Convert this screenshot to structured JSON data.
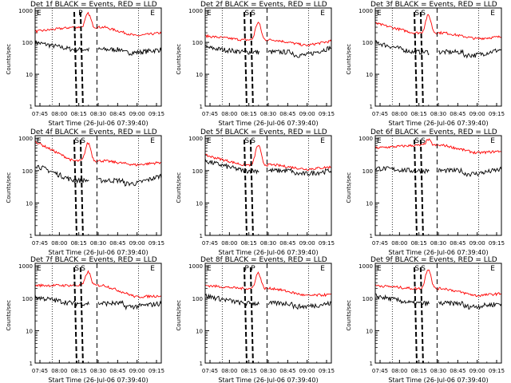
{
  "style": {
    "events_color": "#000000",
    "lld_color": "#ff0000",
    "background": "#ffffff"
  },
  "chart_data": [
    {
      "type": "line",
      "title": "Det 1f BLACK = Events, RED = LLD",
      "ylabel": "Counts/sec",
      "xlabel": "Start Time (26-Jul-06 07:39:40)",
      "x_ticks": [
        "07:45",
        "08:00",
        "08:15",
        "08:30",
        "08:45",
        "09:00",
        "09:15"
      ],
      "y_ticks": [
        "1",
        "10",
        "100",
        "1000"
      ],
      "y_scale": "log",
      "ylim": [
        1,
        1200
      ],
      "marker_labels": [
        "E",
        "P",
        "E"
      ],
      "series": [
        {
          "name": "Events",
          "color": "#000000"
        },
        {
          "name": "LLD",
          "color": "#ff0000"
        }
      ],
      "lld": {
        "start": 220,
        "pre": 300,
        "peak": 800,
        "valley": 160,
        "end": 200
      },
      "events": {
        "start": 100,
        "pre": 60,
        "end": 60
      },
      "shading": [
        [
          0.35,
          0.45
        ],
        [
          0.45,
          0.55
        ]
      ]
    },
    {
      "type": "line",
      "title": "Det 2f BLACK = Events, RED = LLD",
      "ylabel": "Counts/sec",
      "xlabel": "Start Time (26-Jul-06 07:39:40)",
      "x_ticks": [
        "07:45",
        "08:00",
        "08:15",
        "08:30",
        "08:45",
        "09:00",
        "09:15"
      ],
      "y_ticks": [
        "1",
        "10",
        "100",
        "1000"
      ],
      "y_scale": "log",
      "ylim": [
        1,
        1200
      ],
      "marker_labels": [
        "E",
        "S",
        "S",
        "E"
      ],
      "series": [
        {
          "name": "Events",
          "color": "#000000"
        },
        {
          "name": "LLD",
          "color": "#ff0000"
        }
      ],
      "lld": {
        "start": 160,
        "pre": 120,
        "peak": 420,
        "valley": 80,
        "end": 110
      },
      "events": {
        "start": 70,
        "pre": 50,
        "end": 70
      }
    },
    {
      "type": "line",
      "title": "Det 3f BLACK = Events, RED = LLD",
      "ylabel": "Counts/sec",
      "xlabel": "Start Time (26-Jul-06 07:39:40)",
      "x_ticks": [
        "07:45",
        "08:00",
        "08:15",
        "08:30",
        "08:45",
        "09:00",
        "09:15"
      ],
      "y_ticks": [
        "1",
        "10",
        "100",
        "1000"
      ],
      "y_scale": "log",
      "ylim": [
        1,
        1200
      ],
      "marker_labels": [
        "E",
        "S",
        "S",
        "E"
      ],
      "series": [
        {
          "name": "Events",
          "color": "#000000"
        },
        {
          "name": "LLD",
          "color": "#ff0000"
        }
      ],
      "lld": {
        "start": 400,
        "pre": 200,
        "peak": 700,
        "valley": 130,
        "end": 150
      },
      "events": {
        "start": 100,
        "pre": 50,
        "end": 60
      }
    },
    {
      "type": "line",
      "title": "Det 4f BLACK = Events, RED = LLD",
      "ylabel": "Counts/sec",
      "xlabel": "Start Time (26-Jul-06 07:39:40)",
      "x_ticks": [
        "07:45",
        "08:00",
        "08:15",
        "08:30",
        "08:45",
        "09:00",
        "09:15"
      ],
      "y_ticks": [
        "1",
        "10",
        "100",
        "1000"
      ],
      "y_scale": "log",
      "ylim": [
        1,
        1200
      ],
      "marker_labels": [
        "E",
        "S",
        "S",
        "E"
      ],
      "series": [
        {
          "name": "Events",
          "color": "#000000"
        },
        {
          "name": "LLD",
          "color": "#ff0000"
        }
      ],
      "lld": {
        "start": 800,
        "pre": 200,
        "peak": 700,
        "valley": 150,
        "end": 180
      },
      "events": {
        "start": 150,
        "pre": 50,
        "end": 70
      }
    },
    {
      "type": "line",
      "title": "Det 5f BLACK = Events, RED = LLD",
      "ylabel": "Counts/sec",
      "xlabel": "Start Time (26-Jul-06 07:39:40)",
      "x_ticks": [
        "07:45",
        "08:00",
        "08:15",
        "08:30",
        "08:45",
        "09:00",
        "09:15"
      ],
      "y_ticks": [
        "1",
        "10",
        "100",
        "1000"
      ],
      "y_scale": "log",
      "ylim": [
        1,
        1200
      ],
      "marker_labels": [
        "E",
        "S",
        "S",
        "E"
      ],
      "series": [
        {
          "name": "Events",
          "color": "#000000"
        },
        {
          "name": "LLD",
          "color": "#ff0000"
        }
      ],
      "lld": {
        "start": 300,
        "pre": 150,
        "peak": 600,
        "valley": 110,
        "end": 130
      },
      "events": {
        "start": 200,
        "pre": 100,
        "end": 100
      }
    },
    {
      "type": "line",
      "title": "Det 6f BLACK = Events, RED = LLD",
      "ylabel": "Counts/sec",
      "xlabel": "Start Time (26-Jul-06 07:39:40)",
      "x_ticks": [
        "07:45",
        "08:00",
        "08:15",
        "08:30",
        "08:45",
        "09:00",
        "09:15"
      ],
      "y_ticks": [
        "1",
        "10",
        "100",
        "1000"
      ],
      "y_scale": "log",
      "ylim": [
        1,
        1200
      ],
      "marker_labels": [
        "E",
        "S",
        "S",
        "E"
      ],
      "series": [
        {
          "name": "Events",
          "color": "#000000"
        },
        {
          "name": "LLD",
          "color": "#ff0000"
        }
      ],
      "lld": {
        "start": 500,
        "pre": 600,
        "peak": 900,
        "valley": 350,
        "end": 400
      },
      "events": {
        "start": 120,
        "pre": 100,
        "end": 110
      }
    },
    {
      "type": "line",
      "title": "Det 7f BLACK = Events, RED = LLD",
      "ylabel": "Counts/sec",
      "xlabel": "Start Time (26-Jul-06 07:39:40)",
      "x_ticks": [
        "07:45",
        "08:00",
        "08:15",
        "08:30",
        "08:45",
        "09:00",
        "09:15"
      ],
      "y_ticks": [
        "1",
        "10",
        "100",
        "1000"
      ],
      "y_scale": "log",
      "ylim": [
        1,
        1200
      ],
      "marker_labels": [
        "E",
        "S",
        "S",
        "E"
      ],
      "series": [
        {
          "name": "Events",
          "color": "#000000"
        },
        {
          "name": "LLD",
          "color": "#ff0000"
        }
      ],
      "lld": {
        "start": 250,
        "pre": 250,
        "peak": 650,
        "valley": 110,
        "end": 120
      },
      "events": {
        "start": 110,
        "pre": 70,
        "end": 70
      }
    },
    {
      "type": "line",
      "title": "Det 8f BLACK = Events, RED = LLD",
      "ylabel": "Counts/sec",
      "xlabel": "Start Time (26-Jul-06 07:39:40)",
      "x_ticks": [
        "07:45",
        "08:00",
        "08:15",
        "08:30",
        "08:45",
        "09:00",
        "09:15"
      ],
      "y_ticks": [
        "1",
        "10",
        "100",
        "1000"
      ],
      "y_scale": "log",
      "ylim": [
        1,
        1200
      ],
      "marker_labels": [
        "E",
        "P",
        "P",
        "E"
      ],
      "series": [
        {
          "name": "Events",
          "color": "#000000"
        },
        {
          "name": "LLD",
          "color": "#ff0000"
        }
      ],
      "lld": {
        "start": 250,
        "pre": 200,
        "peak": 600,
        "valley": 120,
        "end": 130
      },
      "events": {
        "start": 120,
        "pre": 70,
        "end": 70
      }
    },
    {
      "type": "line",
      "title": "Det 9f BLACK = Events, RED = LLD",
      "ylabel": "Counts/sec",
      "xlabel": "Start Time (26-Jul-06 07:39:40)",
      "x_ticks": [
        "07:45",
        "08:00",
        "08:15",
        "08:30",
        "08:45",
        "09:00",
        "09:15"
      ],
      "y_ticks": [
        "1",
        "10",
        "100",
        "1000"
      ],
      "y_scale": "log",
      "ylim": [
        1,
        1200
      ],
      "marker_labels": [
        "E",
        "S",
        "S",
        "E"
      ],
      "series": [
        {
          "name": "Events",
          "color": "#000000"
        },
        {
          "name": "LLD",
          "color": "#ff0000"
        }
      ],
      "lld": {
        "start": 250,
        "pre": 200,
        "peak": 800,
        "valley": 120,
        "end": 140
      },
      "events": {
        "start": 120,
        "pre": 70,
        "end": 70
      }
    }
  ]
}
